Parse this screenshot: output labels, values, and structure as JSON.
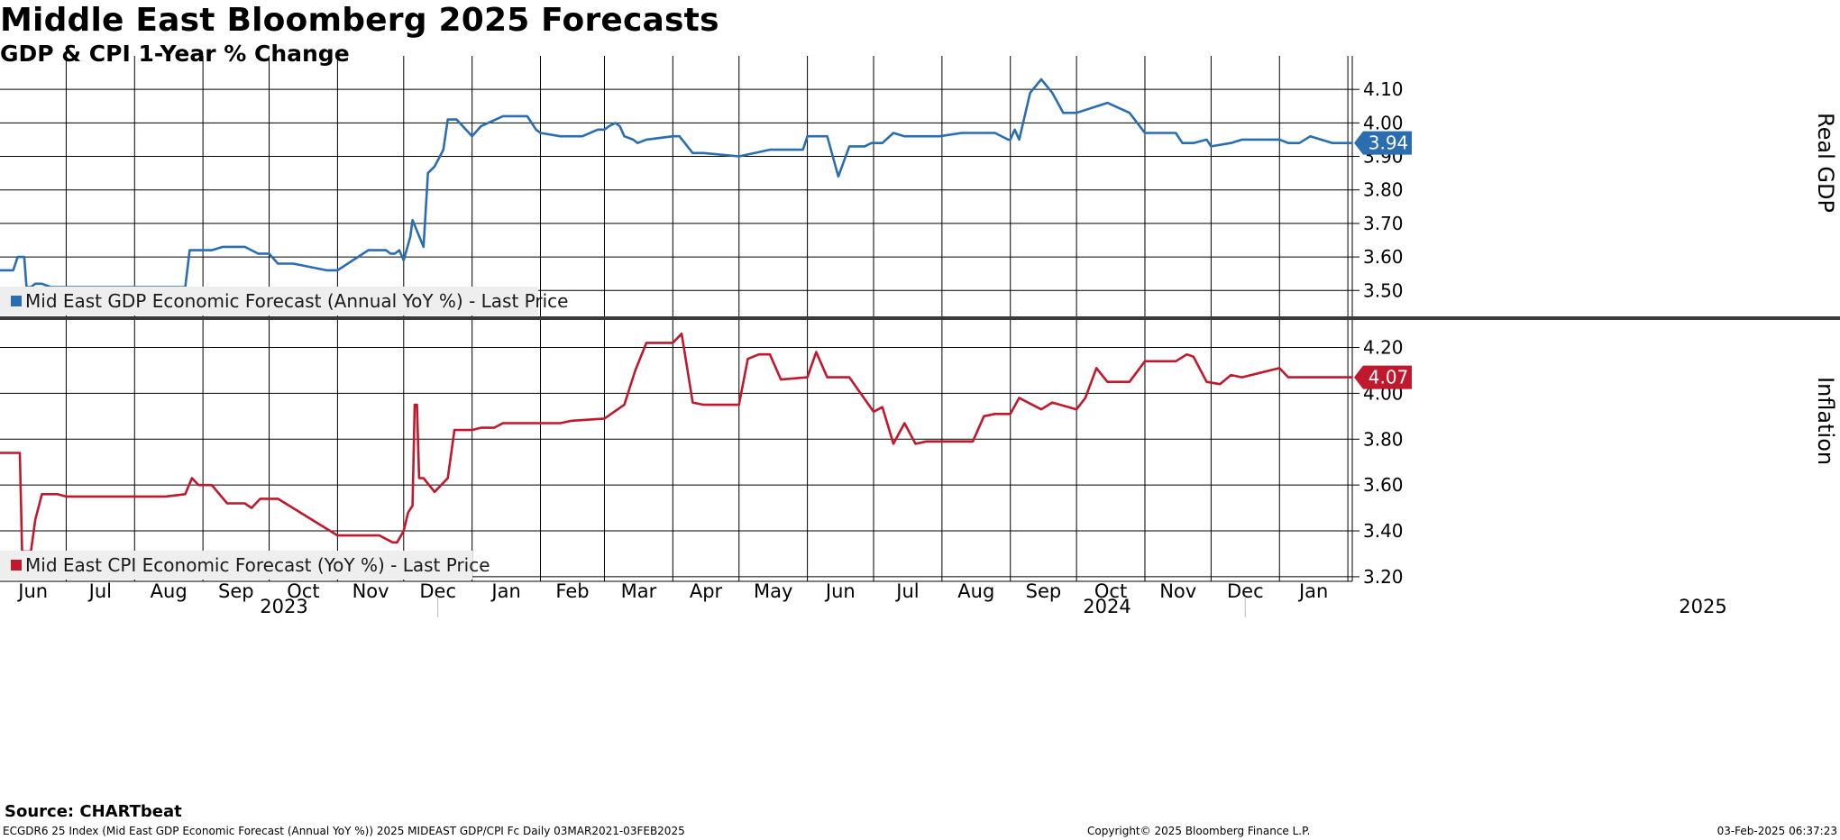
{
  "title": "Middle East Bloomberg 2025 Forecasts",
  "subtitle": "GDP & CPI 1-Year % Change",
  "source": "Source: CHARTbeat",
  "footer": {
    "left": "ECGDR6 25 Index (Mid East GDP Economic Forecast (Annual YoY %)) 2025 MIDEAST GDP/CPI Fc  Daily 03MAR2021-03FEB2025",
    "middle": "Copyright© 2025 Bloomberg Finance L.P.",
    "right": "03-Feb-2025 06:37:23"
  },
  "colors": {
    "gdp": "#2a6db0",
    "cpi": "#c0182c",
    "grid": "#000000",
    "divider": "#3a3a3a",
    "legend_bg": "#eeeeee"
  },
  "x_axis": {
    "months": [
      "Jun",
      "Jul",
      "Aug",
      "Sep",
      "Oct",
      "Nov",
      "Dec",
      "Jan",
      "Feb",
      "Mar",
      "Apr",
      "May",
      "Jun",
      "Jul",
      "Aug",
      "Sep",
      "Oct",
      "Nov",
      "Dec",
      "Jan"
    ],
    "years": [
      "2023",
      "2024",
      "2025"
    ]
  },
  "chart_data": [
    {
      "type": "line",
      "name": "Mid East GDP Economic Forecast (Annual YoY %) - Last Price",
      "legend": "Mid East GDP Economic Forecast (Annual YoY %) - Last Price",
      "ylabel": "Real GDP",
      "yticks": [
        "3.50",
        "3.60",
        "3.70",
        "3.80",
        "3.90",
        "4.00",
        "4.10"
      ],
      "ylim": [
        3.42,
        4.2
      ],
      "xlim": [
        "2023-06-01",
        "2025-02-03"
      ],
      "last_value": "3.94",
      "x": [
        "2023-06-01",
        "2023-06-07",
        "2023-06-09",
        "2023-06-12",
        "2023-06-13",
        "2023-06-15",
        "2023-06-17",
        "2023-06-20",
        "2023-06-24",
        "2023-07-01",
        "2023-07-15",
        "2023-08-01",
        "2023-08-15",
        "2023-08-24",
        "2023-08-26",
        "2023-09-01",
        "2023-09-05",
        "2023-09-10",
        "2023-09-20",
        "2023-09-26",
        "2023-10-01",
        "2023-10-05",
        "2023-10-12",
        "2023-10-27",
        "2023-11-01",
        "2023-11-15",
        "2023-11-20",
        "2023-11-23",
        "2023-11-25",
        "2023-11-27",
        "2023-11-29",
        "2023-12-01",
        "2023-12-04",
        "2023-12-05",
        "2023-12-10",
        "2023-12-12",
        "2023-12-15",
        "2023-12-19",
        "2023-12-21",
        "2023-12-25",
        "2024-01-01",
        "2024-01-05",
        "2024-01-15",
        "2024-01-26",
        "2024-01-30",
        "2024-02-01",
        "2024-02-10",
        "2024-02-20",
        "2024-02-27",
        "2024-03-01",
        "2024-03-03",
        "2024-03-06",
        "2024-03-08",
        "2024-03-10",
        "2024-03-14",
        "2024-03-16",
        "2024-03-20",
        "2024-04-01",
        "2024-04-04",
        "2024-04-10",
        "2024-04-15",
        "2024-05-01",
        "2024-05-15",
        "2024-05-30",
        "2024-06-01",
        "2024-06-10",
        "2024-06-15",
        "2024-06-20",
        "2024-06-27",
        "2024-06-30",
        "2024-07-02",
        "2024-07-05",
        "2024-07-10",
        "2024-07-15",
        "2024-07-31",
        "2024-08-10",
        "2024-08-20",
        "2024-08-25",
        "2024-08-31",
        "2024-09-01",
        "2024-09-03",
        "2024-09-05",
        "2024-09-10",
        "2024-09-15",
        "2024-09-20",
        "2024-09-25",
        "2024-10-01",
        "2024-10-15",
        "2024-10-25",
        "2024-11-01",
        "2024-11-12",
        "2024-11-15",
        "2024-11-18",
        "2024-11-20",
        "2024-11-23",
        "2024-11-29",
        "2024-12-01",
        "2024-12-10",
        "2024-12-15",
        "2024-12-25",
        "2025-01-01",
        "2025-01-05",
        "2025-01-10",
        "2025-01-15",
        "2025-01-25",
        "2025-02-03"
      ],
      "values": [
        3.56,
        3.56,
        3.6,
        3.6,
        3.51,
        3.51,
        3.52,
        3.52,
        3.51,
        3.51,
        3.51,
        3.51,
        3.51,
        3.51,
        3.62,
        3.62,
        3.62,
        3.63,
        3.63,
        3.61,
        3.61,
        3.58,
        3.58,
        3.56,
        3.56,
        3.62,
        3.62,
        3.62,
        3.61,
        3.61,
        3.62,
        3.59,
        3.66,
        3.71,
        3.63,
        3.85,
        3.87,
        3.92,
        4.01,
        4.01,
        3.96,
        3.99,
        4.02,
        4.02,
        3.98,
        3.97,
        3.96,
        3.96,
        3.98,
        3.98,
        3.99,
        4.0,
        3.99,
        3.96,
        3.95,
        3.94,
        3.95,
        3.96,
        3.96,
        3.91,
        3.91,
        3.9,
        3.92,
        3.92,
        3.96,
        3.96,
        3.84,
        3.93,
        3.93,
        3.94,
        3.94,
        3.94,
        3.97,
        3.96,
        3.96,
        3.97,
        3.97,
        3.97,
        3.95,
        3.95,
        3.98,
        3.95,
        4.09,
        4.13,
        4.09,
        4.03,
        4.03,
        4.06,
        4.03,
        3.97,
        3.97,
        3.97,
        3.94,
        3.94,
        3.94,
        3.95,
        3.93,
        3.94,
        3.95,
        3.95,
        3.95,
        3.94,
        3.94,
        3.96,
        3.94,
        3.94
      ]
    },
    {
      "type": "line",
      "name": "Mid East CPI Economic Forecast (YoY %) - Last Price",
      "legend": "Mid East CPI Economic Forecast (YoY %) - Last Price",
      "ylabel": "Inflation",
      "yticks": [
        "3.20",
        "3.40",
        "3.60",
        "3.80",
        "4.00",
        "4.20"
      ],
      "ylim": [
        3.18,
        4.32
      ],
      "xlim": [
        "2023-06-01",
        "2025-02-03"
      ],
      "last_value": "4.07",
      "x": [
        "2023-06-01",
        "2023-06-10",
        "2023-06-11",
        "2023-06-15",
        "2023-06-17",
        "2023-06-20",
        "2023-06-23",
        "2023-06-27",
        "2023-07-01",
        "2023-07-10",
        "2023-08-01",
        "2023-08-15",
        "2023-08-24",
        "2023-08-27",
        "2023-08-30",
        "2023-09-01",
        "2023-09-05",
        "2023-09-12",
        "2023-09-20",
        "2023-09-23",
        "2023-09-27",
        "2023-10-01",
        "2023-10-05",
        "2023-11-01",
        "2023-11-15",
        "2023-11-20",
        "2023-11-26",
        "2023-11-28",
        "2023-12-01",
        "2023-12-03",
        "2023-12-05",
        "2023-12-06",
        "2023-12-07",
        "2023-12-08",
        "2023-12-10",
        "2023-12-15",
        "2023-12-21",
        "2023-12-24",
        "2024-01-01",
        "2024-01-05",
        "2024-01-11",
        "2024-01-15",
        "2024-01-22",
        "2024-02-01",
        "2024-02-10",
        "2024-02-15",
        "2024-03-01",
        "2024-03-10",
        "2024-03-15",
        "2024-03-20",
        "2024-04-01",
        "2024-04-05",
        "2024-04-10",
        "2024-04-15",
        "2024-05-01",
        "2024-05-05",
        "2024-05-10",
        "2024-05-15",
        "2024-05-20",
        "2024-06-01",
        "2024-06-05",
        "2024-06-10",
        "2024-06-20",
        "2024-07-01",
        "2024-07-05",
        "2024-07-10",
        "2024-07-15",
        "2024-07-20",
        "2024-07-25",
        "2024-07-31",
        "2024-08-15",
        "2024-08-20",
        "2024-08-25",
        "2024-09-01",
        "2024-09-05",
        "2024-09-15",
        "2024-09-20",
        "2024-10-01",
        "2024-10-05",
        "2024-10-10",
        "2024-10-15",
        "2024-10-25",
        "2024-11-01",
        "2024-11-05",
        "2024-11-15",
        "2024-11-20",
        "2024-11-23",
        "2024-11-29",
        "2024-12-05",
        "2024-12-10",
        "2024-12-15",
        "2025-01-01",
        "2025-01-05",
        "2025-01-10",
        "2025-02-03"
      ],
      "values": [
        3.74,
        3.74,
        3.31,
        3.31,
        3.45,
        3.56,
        3.56,
        3.56,
        3.55,
        3.55,
        3.55,
        3.55,
        3.56,
        3.63,
        3.6,
        3.6,
        3.6,
        3.52,
        3.52,
        3.5,
        3.54,
        3.54,
        3.54,
        3.38,
        3.38,
        3.38,
        3.35,
        3.35,
        3.4,
        3.48,
        3.51,
        3.95,
        3.95,
        3.63,
        3.63,
        3.57,
        3.63,
        3.84,
        3.84,
        3.85,
        3.85,
        3.87,
        3.87,
        3.87,
        3.87,
        3.88,
        3.89,
        3.95,
        4.1,
        4.22,
        4.22,
        4.26,
        3.96,
        3.95,
        3.95,
        4.15,
        4.17,
        4.17,
        4.06,
        4.07,
        4.18,
        4.07,
        4.07,
        3.92,
        3.94,
        3.78,
        3.87,
        3.78,
        3.79,
        3.79,
        3.79,
        3.9,
        3.91,
        3.91,
        3.98,
        3.93,
        3.96,
        3.93,
        3.98,
        4.11,
        4.05,
        4.05,
        4.14,
        4.14,
        4.14,
        4.17,
        4.16,
        4.05,
        4.04,
        4.08,
        4.07,
        4.11,
        4.07,
        4.07,
        4.07
      ]
    }
  ]
}
